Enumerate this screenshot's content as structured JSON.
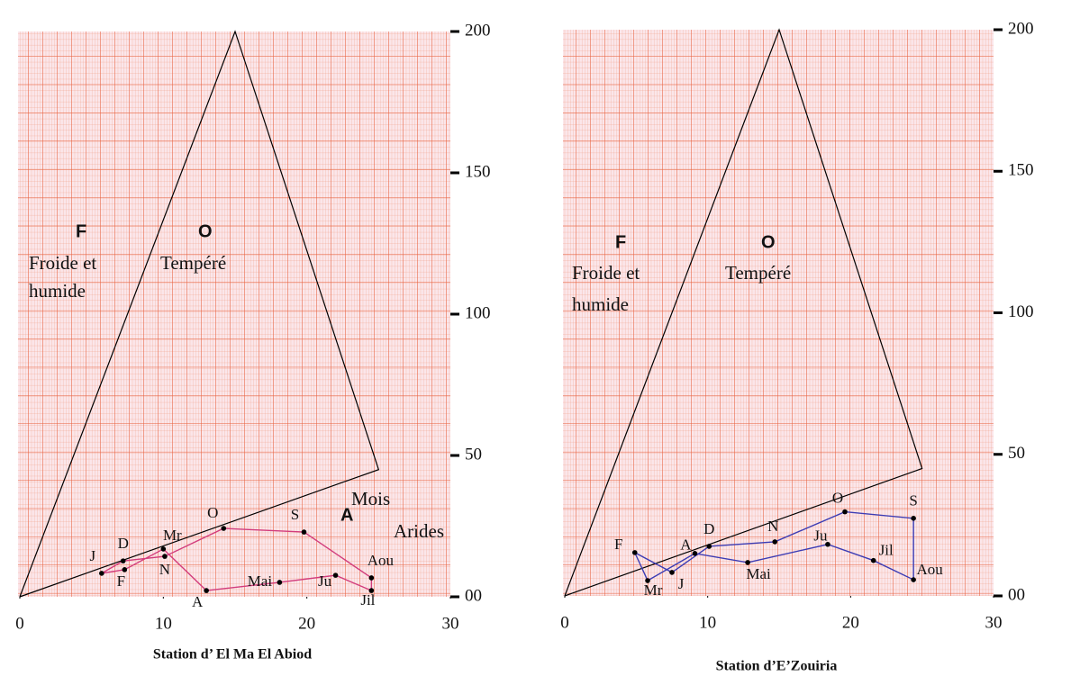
{
  "chart_data": [
    {
      "type": "line",
      "title": "Station d’ El Ma El Abiod",
      "color": "#d23c7c",
      "point_labels": [
        "J",
        "F",
        "Mr",
        "A",
        "Mai",
        "Ju",
        "Jil",
        "Aou",
        "S",
        "O",
        "N",
        "D"
      ],
      "x": [
        5.7,
        7.3,
        10,
        13,
        18.1,
        22,
        24.5,
        24.5,
        19.8,
        14.2,
        10.1,
        7.2
      ],
      "y": [
        8.3,
        9.6,
        16.9,
        2.2,
        5.1,
        7.6,
        2.2,
        6.7,
        22.9,
        24.2,
        14.3,
        12.7
      ],
      "boundary": {
        "x": [
          0,
          15,
          25,
          0
        ],
        "y": [
          0,
          200,
          45,
          0
        ]
      },
      "annotations": [
        "F",
        "O",
        "Froide et",
        "humide",
        "Tempéré",
        "A",
        "Mois",
        "Arides"
      ],
      "xlim": [
        0,
        30
      ],
      "ylim": [
        0,
        200
      ],
      "xticks": [
        0,
        10,
        20,
        30
      ],
      "yticks": [
        {
          "value": 0,
          "label": "00"
        },
        50,
        100,
        150,
        200
      ]
    },
    {
      "type": "line",
      "title": "Station d’E’Zouiria",
      "color": "#3c3cb4",
      "point_labels": [
        "J",
        "F",
        "Mr",
        "A",
        "Mai",
        "Ju",
        "Jil",
        "Aou",
        "S",
        "O",
        "N",
        "D"
      ],
      "x": [
        7.5,
        4.9,
        5.8,
        9.1,
        12.8,
        18.4,
        21.6,
        24.4,
        24.4,
        19.6,
        14.7,
        10.1
      ],
      "y": [
        8.3,
        15.3,
        5.4,
        15.0,
        11.8,
        18.2,
        12.5,
        5.7,
        27.4,
        29.7,
        19.1,
        17.5
      ],
      "boundary": {
        "x": [
          0,
          15,
          25,
          0
        ],
        "y": [
          0,
          200,
          45,
          0
        ]
      },
      "annotations": [
        "F",
        "O",
        "Froide et",
        "humide",
        "Tempéré"
      ],
      "xlim": [
        0,
        30
      ],
      "ylim": [
        0,
        200
      ],
      "xticks": [
        0,
        10,
        20,
        30
      ],
      "yticks": [
        {
          "value": 0,
          "label": "00"
        },
        50,
        100,
        150,
        200
      ]
    }
  ]
}
